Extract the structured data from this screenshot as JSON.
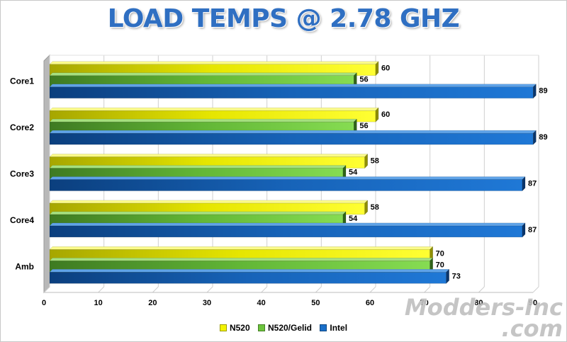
{
  "chart_data": {
    "type": "bar",
    "orientation": "horizontal",
    "title": "LOAD TEMPS @ 2.78 GHZ",
    "categories": [
      "Core1",
      "Core2",
      "Core3",
      "Core4",
      "Amb"
    ],
    "series": [
      {
        "name": "N520",
        "values": [
          60,
          60,
          58,
          58,
          70
        ],
        "color": "#f2f200"
      },
      {
        "name": "N520/Gelid",
        "values": [
          56,
          56,
          54,
          54,
          70
        ],
        "color": "#6cc43c"
      },
      {
        "name": "Intel",
        "values": [
          89,
          89,
          87,
          87,
          73
        ],
        "color": "#1a6fc9"
      }
    ],
    "xlim": [
      0,
      90
    ],
    "xticks": [
      0,
      10,
      20,
      30,
      40,
      50,
      60,
      70,
      80,
      90
    ],
    "grid": true,
    "legend_position": "bottom"
  },
  "watermark": {
    "line1": "Modders-Inc",
    "line2": ".com"
  }
}
